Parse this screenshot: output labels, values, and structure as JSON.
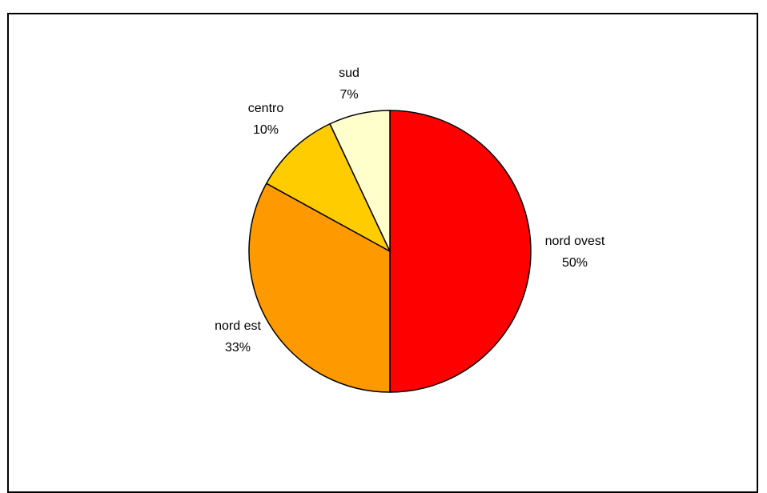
{
  "chart_data": {
    "type": "pie",
    "title": "",
    "slices": [
      {
        "label": "nord ovest",
        "percent_label": "50%",
        "value": 50,
        "color": "#ff0000"
      },
      {
        "label": "nord est",
        "percent_label": "33%",
        "value": 33,
        "color": "#ff9900"
      },
      {
        "label": "centro",
        "percent_label": "10%",
        "value": 10,
        "color": "#ffcc00"
      },
      {
        "label": "sud",
        "percent_label": "7%",
        "value": 7,
        "color": "#ffffcc"
      }
    ],
    "legend": "none",
    "start_angle": "12 o'clock",
    "direction": "clockwise"
  }
}
